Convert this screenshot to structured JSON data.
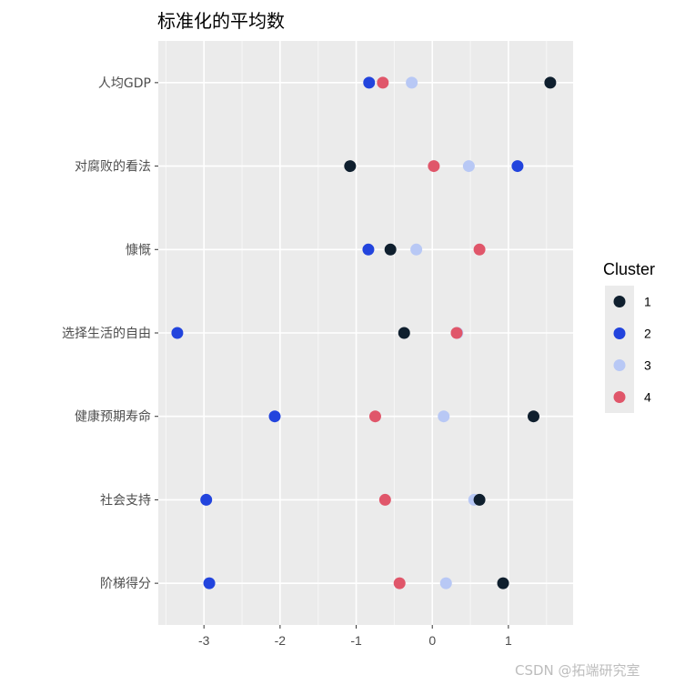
{
  "chart_data": {
    "type": "scatter",
    "title": "标准化的平均数",
    "xlabel": "",
    "ylabel": "",
    "xlim": [
      -3.6,
      1.85
    ],
    "x_ticks": [
      "-3",
      "-2",
      "-1",
      "0",
      "1"
    ],
    "categories": [
      "人均GDP",
      "对腐败的看法",
      "慷慨",
      "选择生活的自由",
      "健康预期寿命",
      "社会支持",
      "阶梯得分"
    ],
    "legend_title": "Cluster",
    "legend_position": "right",
    "grid": true,
    "series": [
      {
        "name": "1",
        "color": "#0f1f2e",
        "values": [
          1.55,
          -1.08,
          -0.55,
          -0.37,
          1.33,
          0.62,
          0.93
        ]
      },
      {
        "name": "2",
        "color": "#2244dd",
        "values": [
          -0.83,
          1.12,
          -0.84,
          -3.35,
          -2.07,
          -2.97,
          -2.93
        ]
      },
      {
        "name": "3",
        "color": "#b8c8f5",
        "values": [
          -0.27,
          0.48,
          -0.21,
          0.33,
          0.15,
          0.55,
          0.18
        ]
      },
      {
        "name": "4",
        "color": "#e0566a",
        "values": [
          -0.65,
          0.02,
          0.62,
          0.32,
          -0.75,
          -0.62,
          -0.43
        ]
      }
    ]
  },
  "watermark": "CSDN @拓端研究室"
}
